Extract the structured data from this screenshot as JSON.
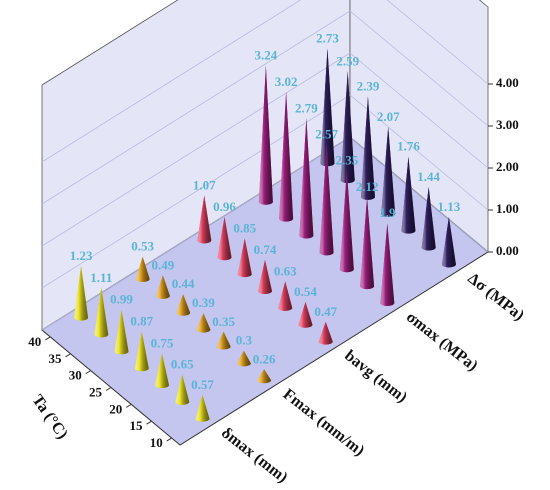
{
  "chart_data": {
    "type": "cone3d",
    "x_label": "Ta (°C)",
    "x": [
      40,
      35,
      30,
      25,
      20,
      15,
      10
    ],
    "xlim": [
      10,
      40
    ],
    "xticks": [
      10,
      15,
      20,
      25,
      30,
      35,
      40
    ],
    "ylim": [
      0,
      4
    ],
    "yticks": [
      {
        "value": 0,
        "label": "0.00"
      },
      {
        "value": 1,
        "label": "1.00"
      },
      {
        "value": 2,
        "label": "2.00"
      },
      {
        "value": 3,
        "label": "3.00"
      },
      {
        "value": 4,
        "label": "4.00"
      }
    ],
    "grid": true,
    "series": [
      {
        "name": "δmax (mm)",
        "color": "#e8e020",
        "values": [
          1.23,
          1.11,
          0.99,
          0.87,
          0.75,
          0.65,
          0.57
        ]
      },
      {
        "name": "Fmax (mm/m)",
        "color": "#e0a020",
        "values": [
          0.53,
          0.49,
          0.44,
          0.39,
          0.35,
          0.3,
          0.26
        ]
      },
      {
        "name": "bavg (mm)",
        "color": "#e04060",
        "values": [
          1.07,
          0.96,
          0.85,
          0.74,
          0.63,
          0.54,
          0.47
        ]
      },
      {
        "name": "σmax (MPa)",
        "color": "#a02080",
        "values": [
          3.24,
          3.02,
          2.79,
          2.57,
          2.35,
          2.12,
          1.9
        ]
      },
      {
        "name": "Δσ (MPa)",
        "color": "#302060",
        "values": [
          2.73,
          2.59,
          2.39,
          2.07,
          1.76,
          1.44,
          1.13
        ]
      }
    ]
  }
}
